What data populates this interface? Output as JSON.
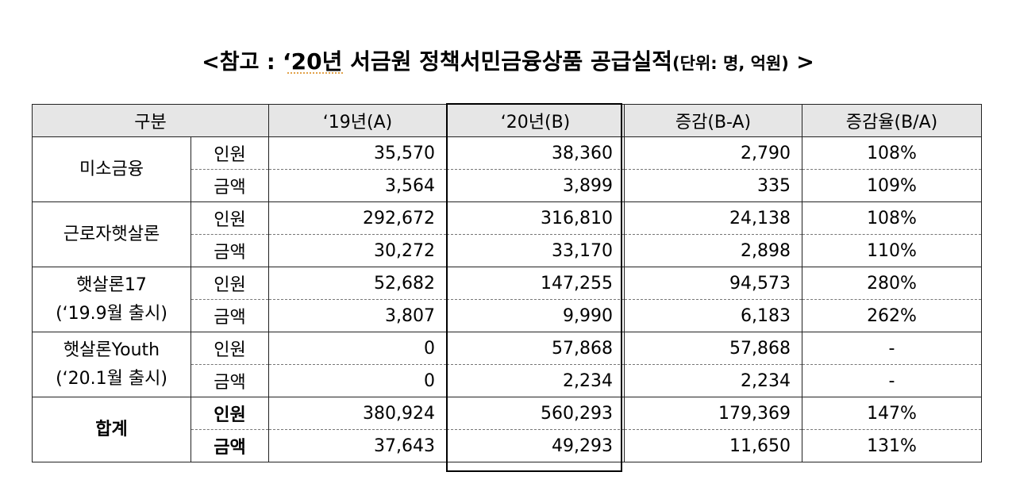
{
  "title": {
    "open": "<참고 : ",
    "main": "‘20년 서금원 정책서민금융상품 공급실적",
    "unit": "(단위: 명, 억원)",
    "close": " >"
  },
  "table": {
    "headers": {
      "category": "구분",
      "y19": "‘19년(A)",
      "y20": "‘20년(B)",
      "diff": "증감(B-A)",
      "ratio": "증감율(B/A)"
    },
    "groups": [
      {
        "name_line1": "미소금융",
        "name_line2": "",
        "rows": [
          {
            "label": "인원",
            "y19": "35,570",
            "y20": "38,360",
            "diff": "2,790",
            "ratio": "108%"
          },
          {
            "label": "금액",
            "y19": "3,564",
            "y20": "3,899",
            "diff": "335",
            "ratio": "109%"
          }
        ]
      },
      {
        "name_line1": "근로자햇살론",
        "name_line2": "",
        "rows": [
          {
            "label": "인원",
            "y19": "292,672",
            "y20": "316,810",
            "diff": "24,138",
            "ratio": "108%"
          },
          {
            "label": "금액",
            "y19": "30,272",
            "y20": "33,170",
            "diff": "2,898",
            "ratio": "110%"
          }
        ]
      },
      {
        "name_line1": "햇살론17",
        "name_line2": "(‘19.9월 출시)",
        "rows": [
          {
            "label": "인원",
            "y19": "52,682",
            "y20": "147,255",
            "diff": "94,573",
            "ratio": "280%"
          },
          {
            "label": "금액",
            "y19": "3,807",
            "y20": "9,990",
            "diff": "6,183",
            "ratio": "262%"
          }
        ]
      },
      {
        "name_line1": "햇살론Youth",
        "name_line2": "(‘20.1월 출시)",
        "rows": [
          {
            "label": "인원",
            "y19": "0",
            "y20": "57,868",
            "diff": "57,868",
            "ratio": "-"
          },
          {
            "label": "금액",
            "y19": "0",
            "y20": "2,234",
            "diff": "2,234",
            "ratio": "-"
          }
        ]
      },
      {
        "name_line1": "합계",
        "name_line2": "",
        "rows": [
          {
            "label": "인원",
            "y19": "380,924",
            "y20": "560,293",
            "diff": "179,369",
            "ratio": "147%"
          },
          {
            "label": "금액",
            "y19": "37,643",
            "y20": "49,293",
            "diff": "11,650",
            "ratio": "131%"
          }
        ]
      }
    ]
  }
}
